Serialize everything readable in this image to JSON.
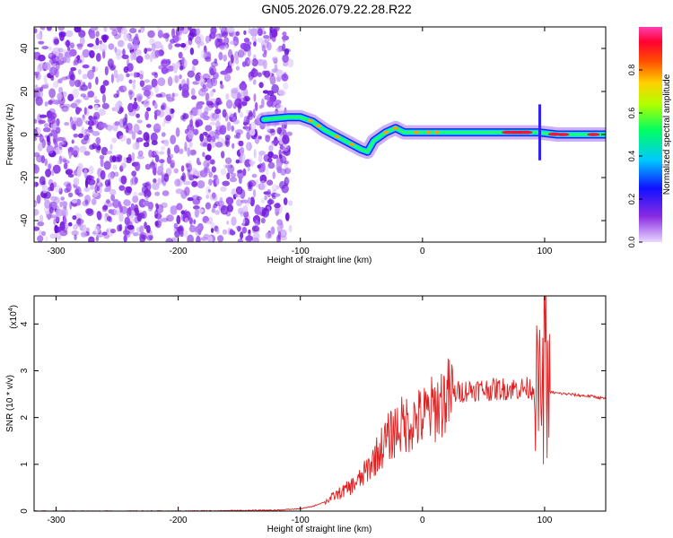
{
  "title": "GN05.2026.079.22.28.R22",
  "chart_data": [
    {
      "type": "heatmap",
      "xlabel": "Height of straight line (km)",
      "ylabel": "Frequency (Hz)",
      "xlim": [
        -318,
        150
      ],
      "ylim": [
        -50,
        50
      ],
      "x_ticks": [
        -300,
        -200,
        -100,
        0,
        100
      ],
      "x_tick_labels": [
        "-300",
        "-200",
        "-100",
        "0",
        "100"
      ],
      "y_ticks": [
        -40,
        -20,
        0,
        20,
        40
      ],
      "y_tick_labels": [
        "-40",
        "-20",
        "0",
        "20",
        "40"
      ],
      "noise_region_x": [
        -318,
        -108
      ],
      "ridge": [
        {
          "x": -130,
          "y": 7
        },
        {
          "x": -110,
          "y": 8
        },
        {
          "x": -100,
          "y": 8
        },
        {
          "x": -90,
          "y": 6
        },
        {
          "x": -80,
          "y": 2
        },
        {
          "x": -70,
          "y": -1
        },
        {
          "x": -60,
          "y": -4
        },
        {
          "x": -50,
          "y": -7
        },
        {
          "x": -45,
          "y": -8
        },
        {
          "x": -40,
          "y": -3
        },
        {
          "x": -30,
          "y": 1
        },
        {
          "x": -22,
          "y": 3
        },
        {
          "x": -15,
          "y": 1
        },
        {
          "x": 0,
          "y": 1
        },
        {
          "x": 20,
          "y": 1
        },
        {
          "x": 50,
          "y": 1
        },
        {
          "x": 80,
          "y": 1
        },
        {
          "x": 95,
          "y": 1
        },
        {
          "x": 110,
          "y": 0
        },
        {
          "x": 130,
          "y": 0
        },
        {
          "x": 150,
          "y": 0
        }
      ],
      "colorbar": {
        "label": "Normalized spectral amplitude",
        "range": [
          0,
          1
        ],
        "ticks": [
          0.0,
          0.2,
          0.4,
          0.6,
          0.8
        ],
        "tick_labels": [
          "0.0",
          "0.2",
          "0.4",
          "0.6",
          "0.8"
        ]
      },
      "grid": false
    },
    {
      "type": "line",
      "xlabel": "Height of straight line (km)",
      "ylabel": "SNR (10 * v/v)",
      "y_multiplier": "(x10",
      "y_multiplier_exp": "4",
      "y_multiplier_close": ")",
      "xlim": [
        -318,
        150
      ],
      "ylim": [
        0,
        4.6
      ],
      "x_ticks": [
        -300,
        -200,
        -100,
        0,
        100
      ],
      "x_tick_labels": [
        "-300",
        "-200",
        "-100",
        "0",
        "100"
      ],
      "y_ticks": [
        0,
        1,
        2,
        3,
        4
      ],
      "y_tick_labels": [
        "0",
        "1",
        "2",
        "3",
        "4"
      ],
      "series": [
        {
          "color": "#e02020",
          "x": [
            -318,
            -200,
            -120,
            -100,
            -90,
            -80,
            -70,
            -60,
            -50,
            -40,
            -30,
            -20,
            -10,
            0,
            10,
            20,
            30,
            40,
            50,
            60,
            70,
            80,
            90,
            95,
            100,
            103,
            110,
            120,
            130,
            140,
            150
          ],
          "y": [
            0.0,
            0.0,
            0.02,
            0.05,
            0.1,
            0.2,
            0.35,
            0.5,
            0.7,
            1.1,
            1.5,
            1.8,
            1.9,
            2.0,
            2.2,
            2.45,
            2.55,
            2.6,
            2.6,
            2.6,
            2.62,
            2.62,
            2.63,
            2.6,
            2.3,
            2.55,
            2.52,
            2.5,
            2.47,
            2.45,
            2.4
          ]
        }
      ],
      "grid": false
    }
  ]
}
